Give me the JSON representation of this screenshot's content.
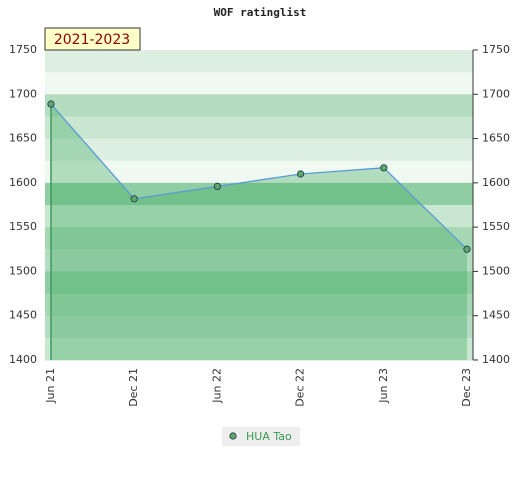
{
  "chart_data": {
    "type": "line",
    "title": "WOF ratinglist",
    "annotation": "2021-2023",
    "categories": [
      "Jun 21",
      "Dec 21",
      "Jun 22",
      "Dec 22",
      "Jun 23",
      "Dec 23"
    ],
    "series": [
      {
        "name": "HUA Tao",
        "color": "#5b9bd5",
        "marker_color": "#5aa86e",
        "values": [
          1689,
          1582,
          1596,
          1610,
          1617,
          1525
        ]
      }
    ],
    "ylim": [
      1400,
      1750
    ],
    "yticks": [
      1400,
      1450,
      1500,
      1550,
      1600,
      1650,
      1700,
      1750
    ],
    "area": true
  }
}
